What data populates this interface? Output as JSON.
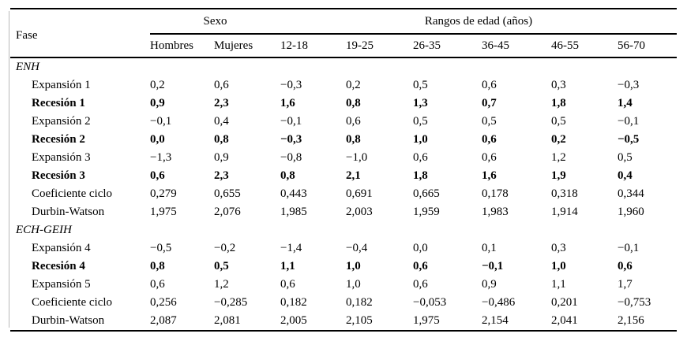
{
  "table": {
    "header": {
      "fase": "Fase",
      "sexo_group": "Sexo",
      "edad_group": "Rangos de edad (años)",
      "columns": [
        "Hombres",
        "Mujeres",
        "12-18",
        "19-25",
        "26-35",
        "36-45",
        "46-55",
        "56-70"
      ]
    },
    "rows": [
      {
        "label": "ENH",
        "style": "section",
        "values": []
      },
      {
        "label": "Expansión 1",
        "style": "normal",
        "values": [
          "0,2",
          "0,6",
          "−0,3",
          "0,2",
          "0,5",
          "0,6",
          "0,3",
          "−0,3"
        ]
      },
      {
        "label": "Recesión 1",
        "style": "bold",
        "values": [
          "0,9",
          "2,3",
          "1,6",
          "0,8",
          "1,3",
          "0,7",
          "1,8",
          "1,4"
        ]
      },
      {
        "label": "Expansión 2",
        "style": "normal",
        "values": [
          "−0,1",
          "0,4",
          "−0,1",
          "0,6",
          "0,5",
          "0,5",
          "0,5",
          "−0,1"
        ]
      },
      {
        "label": "Recesión 2",
        "style": "bold",
        "values": [
          "0,0",
          "0,8",
          "−0,3",
          "0,8",
          "1,0",
          "0,6",
          "0,2",
          "−0,5"
        ]
      },
      {
        "label": "Expansión 3",
        "style": "normal",
        "values": [
          "−1,3",
          "0,9",
          "−0,8",
          "−1,0",
          "0,6",
          "0,6",
          "1,2",
          "0,5"
        ]
      },
      {
        "label": "Recesión 3",
        "style": "bold",
        "values": [
          "0,6",
          "2,3",
          "0,8",
          "2,1",
          "1,8",
          "1,6",
          "1,9",
          "0,4"
        ]
      },
      {
        "label": "Coeficiente ciclo",
        "style": "normal",
        "values": [
          "0,279",
          "0,655",
          "0,443",
          "0,691",
          "0,665",
          "0,178",
          "0,318",
          "0,344"
        ]
      },
      {
        "label": "Durbin-Watson",
        "style": "normal",
        "values": [
          "1,975",
          "2,076",
          "1,985",
          "2,003",
          "1,959",
          "1,983",
          "1,914",
          "1,960"
        ]
      },
      {
        "label": "ECH-GEIH",
        "style": "section",
        "values": []
      },
      {
        "label": "Expansión 4",
        "style": "normal",
        "values": [
          "−0,5",
          "−0,2",
          "−1,4",
          "−0,4",
          "0,0",
          "0,1",
          "0,3",
          "−0,1"
        ]
      },
      {
        "label": "Recesión 4",
        "style": "bold",
        "values": [
          "0,8",
          "0,5",
          "1,1",
          "1,0",
          "0,6",
          "−0,1",
          "1,0",
          "0,6"
        ]
      },
      {
        "label": "Expansión 5",
        "style": "normal",
        "values": [
          "0,6",
          "1,2",
          "0,6",
          "1,0",
          "0,6",
          "0,9",
          "1,1",
          "1,7"
        ]
      },
      {
        "label": "Coeficiente ciclo",
        "style": "normal",
        "values": [
          "0,256",
          "−0,285",
          "0,182",
          "0,182",
          "−0,053",
          "−0,486",
          "0,201",
          "−0,753"
        ]
      },
      {
        "label": "Durbin-Watson",
        "style": "normal",
        "values": [
          "2,087",
          "2,081",
          "2,005",
          "2,105",
          "1,975",
          "2,154",
          "2,041",
          "2,156"
        ]
      }
    ]
  }
}
